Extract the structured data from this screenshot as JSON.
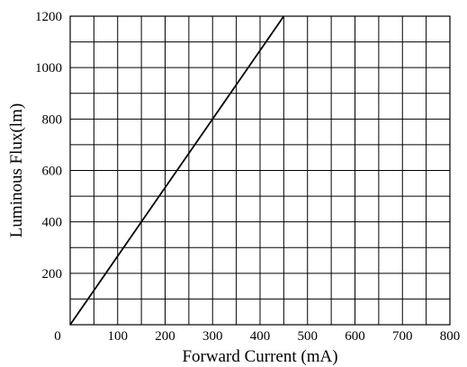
{
  "chart_data": {
    "type": "line",
    "title": "",
    "xlabel": "Forward Current (mA)",
    "ylabel": "Luminous Flux(lm)",
    "xlim": [
      0,
      800
    ],
    "ylim": [
      0,
      1200
    ],
    "grid": true,
    "x_ticks": [
      0,
      100,
      200,
      300,
      400,
      500,
      600,
      700,
      800
    ],
    "y_ticks": [
      200,
      400,
      600,
      800,
      1000,
      1200
    ],
    "x_grid_step": 50,
    "y_grid_step": 100,
    "series": [
      {
        "x": [
          0,
          150,
          300,
          450
        ],
        "y": [
          0,
          400,
          800,
          1200
        ],
        "color": "#000000"
      }
    ]
  }
}
